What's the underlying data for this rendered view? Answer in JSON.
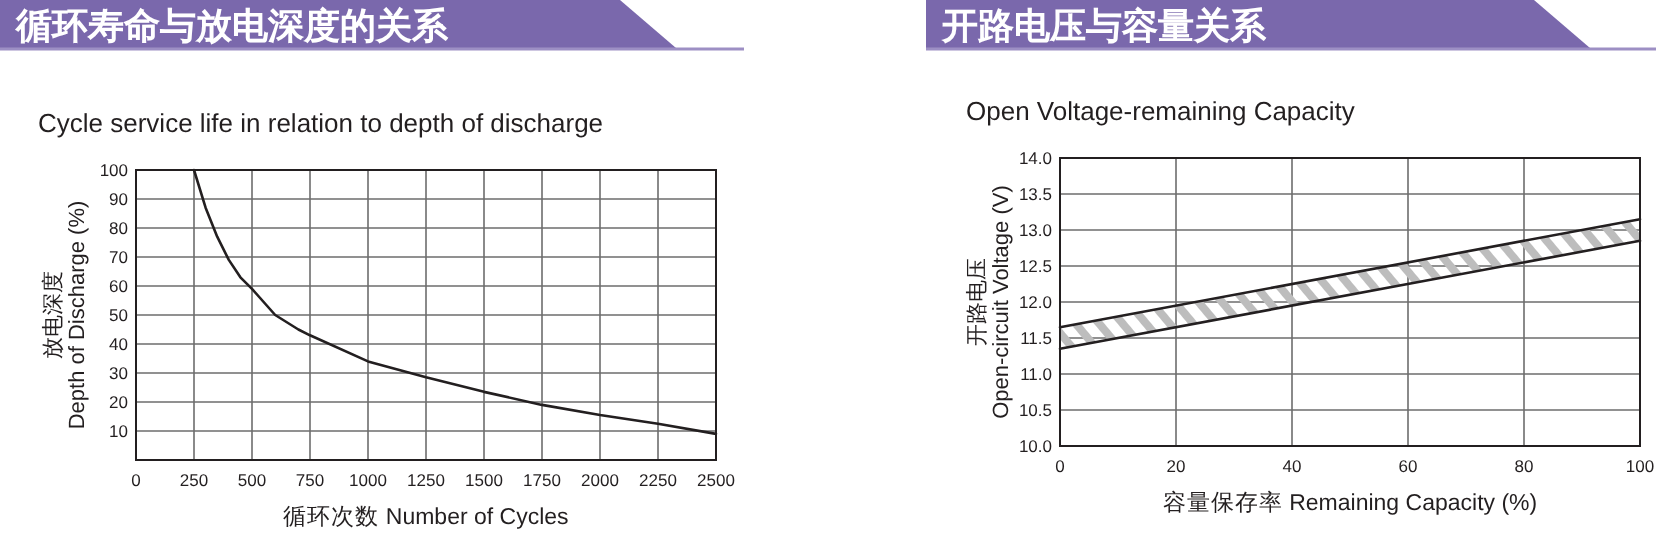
{
  "chart_data": [
    {
      "type": "line",
      "title": "循环寿命与放电深度的关系",
      "subtitle": "Cycle service life in relation to depth of discharge",
      "xlabel": "循环次数 Number of Cycles",
      "ylabel": "放电深度\nDepth of Discharge (%)",
      "x": [
        250,
        300,
        350,
        400,
        450,
        500,
        600,
        700,
        750,
        1000,
        1250,
        1500,
        1750,
        2000,
        2250,
        2500
      ],
      "values": [
        100,
        87,
        77,
        69,
        63,
        59,
        50,
        45,
        43,
        34,
        28.5,
        23.5,
        19,
        15.5,
        12.5,
        9
      ],
      "color": "#231f20",
      "xlim": [
        0,
        2500
      ],
      "xticks": [
        0,
        250,
        500,
        750,
        1000,
        1250,
        1500,
        1750,
        2000,
        2250,
        2500
      ],
      "ylim": [
        0,
        100
      ],
      "yticks": [
        10,
        20,
        30,
        40,
        50,
        60,
        70,
        80,
        90,
        100
      ],
      "grid": true
    },
    {
      "type": "line",
      "title": "开路电压与容量关系",
      "subtitle": "Open Voltage-remaining Capacity",
      "xlabel": "容量保存率 Remaining Capacity (%)",
      "ylabel": "开路电压\nOpen-circuit Voltage (V)",
      "x": [
        0,
        100
      ],
      "series": [
        {
          "color": "#231f20",
          "values": [
            11.65,
            13.15
          ]
        },
        {
          "color": "#231f20",
          "values": [
            11.35,
            12.85
          ]
        }
      ],
      "xlim": [
        0,
        100
      ],
      "xticks": [
        0,
        20,
        40,
        60,
        80,
        100
      ],
      "ylim": [
        10,
        14
      ],
      "yticks": [
        {
          "value": 10,
          "label": "10.0"
        },
        {
          "value": 10.5,
          "label": "10.5"
        },
        {
          "value": 11,
          "label": "11.0"
        },
        {
          "value": 11.5,
          "label": "11.5"
        },
        {
          "value": 12,
          "label": "12.0"
        },
        {
          "value": 12.5,
          "label": "12.5"
        },
        {
          "value": 13,
          "label": "13.0"
        },
        {
          "value": 13.5,
          "label": "13.5"
        },
        {
          "value": 14,
          "label": "14.0"
        }
      ],
      "grid": true
    }
  ]
}
